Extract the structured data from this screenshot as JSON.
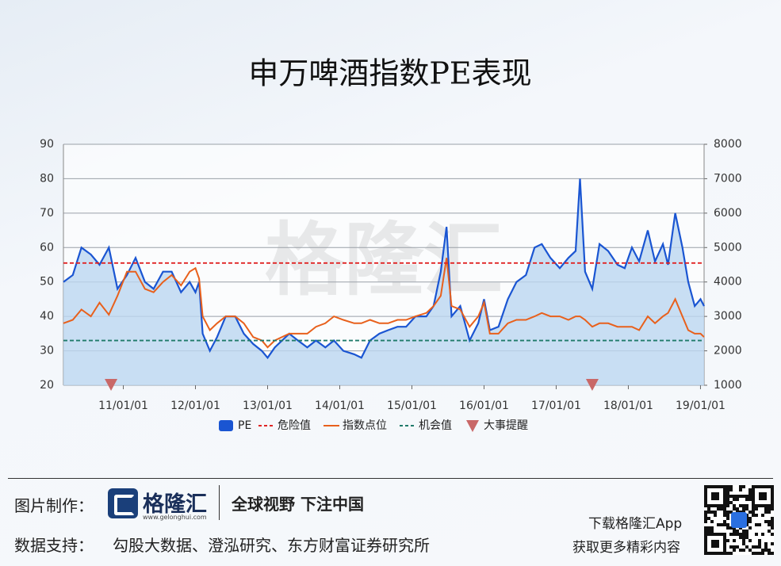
{
  "chart_data": {
    "type": "line",
    "title": "申万啤酒指数PE表现",
    "watermark": "格隆汇",
    "x": [
      2010.17,
      2010.3,
      2010.42,
      2010.55,
      2010.67,
      2010.8,
      2010.92,
      2011.05,
      2011.17,
      2011.3,
      2011.42,
      2011.55,
      2011.67,
      2011.8,
      2011.92,
      2012.0,
      2012.05,
      2012.1,
      2012.2,
      2012.3,
      2012.42,
      2012.55,
      2012.67,
      2012.8,
      2012.92,
      2013.0,
      2013.1,
      2013.3,
      2013.42,
      2013.55,
      2013.67,
      2013.8,
      2013.92,
      2014.05,
      2014.2,
      2014.3,
      2014.42,
      2014.55,
      2014.67,
      2014.8,
      2014.92,
      2015.05,
      2015.2,
      2015.3,
      2015.4,
      2015.48,
      2015.55,
      2015.67,
      2015.8,
      2015.92,
      2016.0,
      2016.08,
      2016.2,
      2016.33,
      2016.45,
      2016.58,
      2016.7,
      2016.8,
      2016.92,
      2017.05,
      2017.17,
      2017.27,
      2017.33,
      2017.4,
      2017.5,
      2017.6,
      2017.72,
      2017.85,
      2017.95,
      2018.05,
      2018.15,
      2018.27,
      2018.37,
      2018.48,
      2018.55,
      2018.65,
      2018.75,
      2018.83,
      2018.92,
      2019.0,
      2019.05
    ],
    "xlim": [
      2010.17,
      2019.05
    ],
    "xticks": [
      {
        "value": 2011,
        "label": "11/01/01"
      },
      {
        "value": 2012,
        "label": "12/01/01"
      },
      {
        "value": 2013,
        "label": "13/01/01"
      },
      {
        "value": 2014,
        "label": "14/01/01"
      },
      {
        "value": 2015,
        "label": "15/01/01"
      },
      {
        "value": 2016,
        "label": "16/01/01"
      },
      {
        "value": 2017,
        "label": "17/01/01"
      },
      {
        "value": 2018,
        "label": "18/01/01"
      },
      {
        "value": 2019,
        "label": "19/01/01"
      }
    ],
    "ylim": [
      20,
      90
    ],
    "yticks": [
      20,
      30,
      40,
      50,
      60,
      70,
      80,
      90
    ],
    "y2lim": [
      1000,
      8000
    ],
    "y2ticks": [
      1000,
      2000,
      3000,
      4000,
      5000,
      6000,
      7000,
      8000
    ],
    "grid": true,
    "series": [
      {
        "name": "PE",
        "color": "#1a55d2",
        "area_color": "#bcd6f0",
        "values": [
          50,
          52,
          60,
          58,
          55,
          60,
          48,
          52,
          57,
          50,
          48,
          53,
          53,
          47,
          50,
          47,
          50,
          35,
          30,
          34,
          40,
          40,
          35,
          32,
          30,
          28,
          31,
          35,
          33,
          31,
          33,
          31,
          33,
          30,
          29,
          28,
          33,
          35,
          36,
          37,
          37,
          40,
          40,
          43,
          53,
          66,
          40,
          43,
          33,
          38,
          45,
          36,
          37,
          45,
          50,
          52,
          60,
          61,
          57,
          54,
          57,
          59,
          80,
          53,
          48,
          61,
          59,
          55,
          54,
          60,
          56,
          65,
          56,
          61,
          55,
          70,
          60,
          50,
          43,
          45,
          43
        ]
      },
      {
        "name": "指数点位",
        "color": "#e8601c",
        "axis": "y2",
        "values": [
          2800,
          2900,
          3200,
          3000,
          3400,
          3050,
          3600,
          4300,
          4300,
          3800,
          3700,
          4000,
          4200,
          3900,
          4300,
          4400,
          4100,
          3000,
          2600,
          2800,
          3000,
          3000,
          2800,
          2400,
          2300,
          2100,
          2300,
          2500,
          2500,
          2500,
          2700,
          2800,
          3000,
          2900,
          2800,
          2800,
          2900,
          2800,
          2800,
          2900,
          2900,
          3000,
          3100,
          3300,
          3600,
          4700,
          3300,
          3200,
          2700,
          3000,
          3400,
          2500,
          2500,
          2800,
          2900,
          2900,
          3000,
          3100,
          3000,
          3000,
          2900,
          3000,
          3000,
          2900,
          2700,
          2800,
          2800,
          2700,
          2700,
          2700,
          2600,
          3000,
          2800,
          3000,
          3100,
          3500,
          3000,
          2600,
          2500,
          2500,
          2400
        ]
      }
    ],
    "reference_lines": [
      {
        "name": "危险值",
        "value": 55.5,
        "color": "#e02424"
      },
      {
        "name": "机会值",
        "value": 33,
        "color": "#1f7a6a"
      }
    ],
    "events": {
      "name": "大事提醒",
      "color": "#c96868",
      "x": [
        2010.83,
        2017.5
      ]
    }
  },
  "footer": {
    "made_by_label": "图片制作：",
    "logo": "格隆汇",
    "logo_url": "www.gelonghui.com",
    "slogan": "全球视野 下注中国",
    "source_label": "数据支持：",
    "sources": "勾股大数据、澄泓研究、东方财富证券研究所",
    "app_line1": "下载格隆汇App",
    "app_line2": "获取更多精彩内容"
  }
}
